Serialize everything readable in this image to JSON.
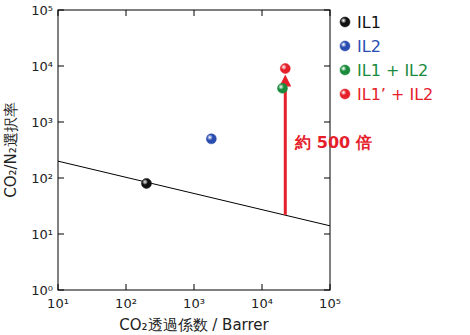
{
  "chart_data": {
    "type": "scatter",
    "log": true,
    "x_label": "CO₂透過係数 / Barrer",
    "y_label": "CO₂/N₂選択率",
    "xlim": [
      10,
      100000
    ],
    "ylim": [
      1,
      100000
    ],
    "xticks": [
      {
        "value": 10,
        "label": "10¹"
      },
      {
        "value": 100,
        "label": "10²"
      },
      {
        "value": 1000,
        "label": "10³"
      },
      {
        "value": 10000,
        "label": "10⁴"
      },
      {
        "value": 100000,
        "label": "10⁵"
      }
    ],
    "yticks": [
      {
        "value": 1,
        "label": "10⁰"
      },
      {
        "value": 10,
        "label": "10¹"
      },
      {
        "value": 100,
        "label": "10²"
      },
      {
        "value": 1000,
        "label": "10³"
      },
      {
        "value": 10000,
        "label": "10⁴"
      },
      {
        "value": 100000,
        "label": "10⁵"
      }
    ],
    "legend": "right",
    "series": [
      {
        "name": "IL1",
        "color": "#111111",
        "marker": "sphere",
        "x": [
          200
        ],
        "values": [
          80
        ]
      },
      {
        "name": "IL2",
        "color": "#2a4db0",
        "marker": "sphere",
        "x": [
          1800
        ],
        "values": [
          500
        ]
      },
      {
        "name": "IL1 + IL2",
        "color": "#1a8a3c",
        "marker": "sphere",
        "x": [
          20000
        ],
        "values": [
          4000
        ]
      },
      {
        "name": "IL1’ + IL2",
        "color": "#e5202a",
        "marker": "sphere",
        "x": [
          22000
        ],
        "values": [
          9000
        ]
      }
    ],
    "upper_bound": {
      "color": "#000000",
      "line_style": "solid",
      "x": [
        10,
        100000
      ],
      "values": [
        200,
        14
      ]
    },
    "annotation": {
      "text": "約 500 倍",
      "color": "#e5202a",
      "x": 22000,
      "y_from": 22,
      "y_to": 9000
    }
  }
}
